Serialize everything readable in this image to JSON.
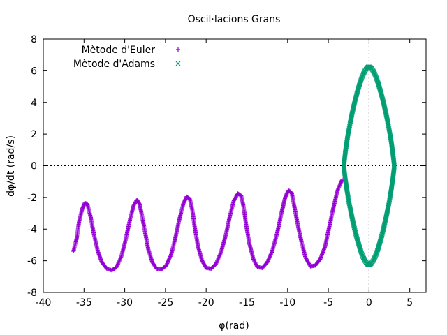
{
  "chart_data": {
    "type": "scatter",
    "title": "Oscil·lacions Grans",
    "xlabel": "φ(rad)",
    "ylabel": "dφ/dt (rad/s)",
    "xlim": [
      -40,
      7
    ],
    "ylim": [
      -8,
      8
    ],
    "xticks": [
      -40,
      -35,
      -30,
      -25,
      -20,
      -15,
      -10,
      -5,
      0,
      5
    ],
    "yticks": [
      -8,
      -6,
      -4,
      -2,
      0,
      2,
      4,
      6,
      8
    ],
    "grid": false,
    "zero_axes": true,
    "legend_position": "top-left",
    "series": [
      {
        "name": "Mètode d'Euler",
        "marker": "+",
        "color": "#9400d3",
        "x": [
          -36.3,
          -35.9,
          -35.6,
          -35.2,
          -34.9,
          -34.6,
          -34.2,
          -33.8,
          -33.3,
          -32.8,
          -32.2,
          -31.6,
          -31.0,
          -30.4,
          -29.9,
          -29.4,
          -28.9,
          -28.5,
          -28.2,
          -27.9,
          -27.5,
          -27.1,
          -26.6,
          -26.1,
          -25.5,
          -24.9,
          -24.3,
          -23.8,
          -23.3,
          -22.8,
          -22.4,
          -22.0,
          -21.7,
          -21.4,
          -21.0,
          -20.5,
          -20.0,
          -19.4,
          -18.8,
          -18.2,
          -17.6,
          -17.1,
          -16.6,
          -16.1,
          -15.7,
          -15.4,
          -15.1,
          -14.7,
          -14.2,
          -13.7,
          -13.1,
          -12.5,
          -11.9,
          -11.3,
          -10.8,
          -10.3,
          -9.9,
          -9.5,
          -9.2,
          -8.8,
          -8.3,
          -7.8,
          -7.2,
          -6.6,
          -6.0,
          -5.4,
          -4.9,
          -4.4,
          -3.9,
          -3.5,
          -3.3
        ],
        "y": [
          -5.4,
          -4.6,
          -3.5,
          -2.7,
          -2.35,
          -2.4,
          -3.2,
          -4.3,
          -5.4,
          -6.1,
          -6.5,
          -6.6,
          -6.4,
          -5.7,
          -4.7,
          -3.5,
          -2.5,
          -2.15,
          -2.4,
          -3.1,
          -4.2,
          -5.3,
          -6.1,
          -6.5,
          -6.55,
          -6.3,
          -5.6,
          -4.6,
          -3.4,
          -2.4,
          -1.95,
          -2.1,
          -2.8,
          -3.9,
          -5.1,
          -6.0,
          -6.45,
          -6.5,
          -6.2,
          -5.5,
          -4.4,
          -3.2,
          -2.2,
          -1.75,
          -1.9,
          -2.6,
          -3.7,
          -4.9,
          -5.9,
          -6.4,
          -6.45,
          -6.1,
          -5.4,
          -4.3,
          -3.1,
          -2.0,
          -1.55,
          -1.7,
          -2.5,
          -3.6,
          -4.8,
          -5.8,
          -6.35,
          -6.3,
          -5.9,
          -5.1,
          -3.9,
          -2.7,
          -1.6,
          -1.1,
          -0.9
        ]
      },
      {
        "name": "Mètode d'Adams",
        "marker": "×",
        "color": "#009e73",
        "x": [
          -3.1,
          -3.05,
          -2.9,
          -2.7,
          -2.5,
          -2.3,
          -2.1,
          -1.9,
          -1.7,
          -1.5,
          -1.3,
          -1.1,
          -0.9,
          -0.7,
          -0.5,
          -0.3,
          -0.1,
          0.0,
          0.1,
          0.3,
          0.5,
          0.7,
          0.9,
          1.1,
          1.3,
          1.5,
          1.7,
          1.9,
          2.1,
          2.3,
          2.5,
          2.7,
          2.9,
          3.05,
          3.1,
          3.05,
          2.9,
          2.7,
          2.5,
          2.3,
          2.1,
          1.9,
          1.7,
          1.5,
          1.3,
          1.1,
          0.9,
          0.7,
          0.5,
          0.3,
          0.1,
          0.0,
          -0.1,
          -0.3,
          -0.5,
          -0.7,
          -0.9,
          -1.1,
          -1.3,
          -1.5,
          -1.7,
          -1.9,
          -2.1,
          -2.3,
          -2.5,
          -2.7,
          -2.9,
          -3.05
        ],
        "y": [
          0.0,
          0.25,
          0.9,
          1.6,
          2.2,
          2.75,
          3.25,
          3.7,
          4.15,
          4.55,
          4.9,
          5.25,
          5.55,
          5.8,
          6.0,
          6.15,
          6.25,
          6.25,
          6.25,
          6.15,
          6.0,
          5.8,
          5.55,
          5.25,
          4.9,
          4.55,
          4.15,
          3.7,
          3.25,
          2.75,
          2.2,
          1.6,
          0.9,
          0.25,
          0.0,
          -0.25,
          -0.9,
          -1.6,
          -2.2,
          -2.75,
          -3.25,
          -3.7,
          -4.15,
          -4.55,
          -4.9,
          -5.25,
          -5.55,
          -5.8,
          -6.0,
          -6.15,
          -6.25,
          -6.25,
          -6.25,
          -6.15,
          -6.0,
          -5.8,
          -5.55,
          -5.25,
          -4.9,
          -4.55,
          -4.15,
          -3.7,
          -3.25,
          -2.75,
          -2.2,
          -1.6,
          -0.9,
          -0.25
        ]
      }
    ]
  }
}
